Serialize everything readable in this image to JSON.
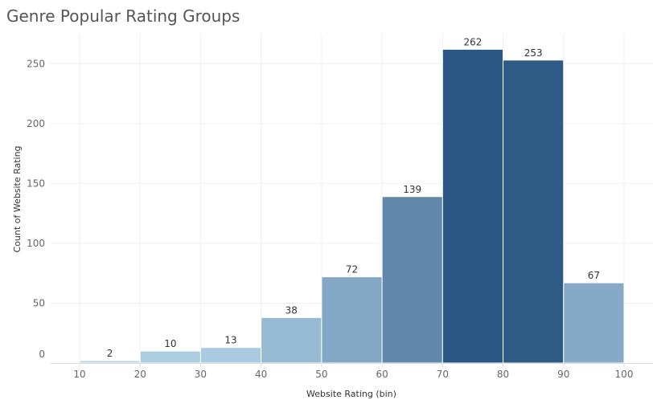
{
  "chart_data": {
    "type": "bar",
    "title": "Genre Popular Rating Groups",
    "xlabel": "Website Rating (bin)",
    "ylabel": "Count of Website Rating",
    "bins": [
      {
        "x0": 10,
        "x1": 20,
        "value": 2
      },
      {
        "x0": 20,
        "x1": 30,
        "value": 10
      },
      {
        "x0": 30,
        "x1": 40,
        "value": 13
      },
      {
        "x0": 40,
        "x1": 50,
        "value": 38
      },
      {
        "x0": 50,
        "x1": 60,
        "value": 72
      },
      {
        "x0": 60,
        "x1": 70,
        "value": 139
      },
      {
        "x0": 70,
        "x1": 80,
        "value": 262
      },
      {
        "x0": 80,
        "x1": 90,
        "value": 253
      },
      {
        "x0": 90,
        "x1": 100,
        "value": 67
      }
    ],
    "xticks": [
      10,
      20,
      30,
      40,
      50,
      60,
      70,
      80,
      90,
      100
    ],
    "yticks": [
      0,
      50,
      100,
      150,
      200,
      250
    ],
    "xlim": [
      10,
      100
    ],
    "ylim": [
      0,
      275
    ],
    "grid": true,
    "legend": "none",
    "color_ramp": [
      "#b9d8ec",
      "#2a5783"
    ]
  }
}
